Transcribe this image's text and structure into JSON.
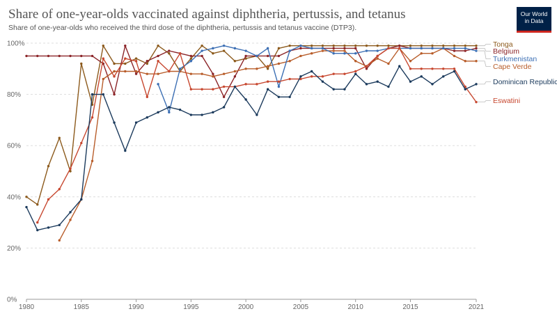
{
  "header": {
    "title": "Share of one-year-olds vaccinated against diphtheria, pertussis, and tetanus",
    "subtitle": "Share of one-year-olds who received the third dose of the diphtheria, pertussis and tetanus vaccine (DTP3).",
    "logo_line1": "Our World",
    "logo_line2": "in Data"
  },
  "colors": {
    "Tonga": "#8c5a1c",
    "Belgium": "#8b2428",
    "Turkmenistan": "#3c6fb4",
    "Cape Verde": "#b85d2a",
    "Dominican Republic": "#1b3a5c",
    "Eswatini": "#c7472f",
    "logo_bg": "#002147",
    "logo_accent": "#ce261e"
  },
  "chart_data": {
    "type": "line",
    "title": "Share of one-year-olds vaccinated against diphtheria, pertussis, and tetanus",
    "subtitle": "Share of one-year-olds who received the third dose of the diphtheria, pertussis and tetanus vaccine (DTP3).",
    "xlim": [
      1980,
      2021
    ],
    "ylim": [
      0,
      100
    ],
    "x_ticks": [
      "1980",
      "1985",
      "1990",
      "1995",
      "2000",
      "2005",
      "2010",
      "2015",
      "2021"
    ],
    "y_ticks": [
      "0%",
      "20%",
      "40%",
      "60%",
      "80%",
      "100%"
    ],
    "grid": "horizontal dashed",
    "legend_placement": "right, inline labels",
    "series": [
      {
        "name": "Tonga",
        "x": [
          1980,
          1981,
          1982,
          1983,
          1984,
          1985,
          1986,
          1987,
          1988,
          1989,
          1990,
          1991,
          1992,
          1993,
          1994,
          1995,
          1996,
          1997,
          1998,
          1999,
          2000,
          2001,
          2002,
          2003,
          2004,
          2005,
          2006,
          2007,
          2008,
          2009,
          2010,
          2011,
          2012,
          2013,
          2014,
          2015,
          2016,
          2017,
          2018,
          2019,
          2020,
          2021
        ],
        "values": [
          40,
          37,
          52,
          63,
          50,
          92,
          76,
          99,
          92,
          92,
          94,
          92,
          99,
          96,
          89,
          94,
          99,
          96,
          97,
          93,
          94,
          95,
          90,
          98,
          99,
          99,
          99,
          99,
          99,
          99,
          99,
          99,
          99,
          99,
          99,
          99,
          99,
          99,
          99,
          99,
          99,
          99
        ]
      },
      {
        "name": "Belgium",
        "x": [
          1980,
          1981,
          1982,
          1983,
          1984,
          1985,
          1986,
          1987,
          1988,
          1989,
          1990,
          1991,
          1992,
          1993,
          1994,
          1995,
          1996,
          1997,
          1998,
          1999,
          2000,
          2001,
          2002,
          2003,
          2004,
          2005,
          2006,
          2007,
          2008,
          2009,
          2010,
          2011,
          2012,
          2013,
          2014,
          2015,
          2016,
          2017,
          2018,
          2019,
          2020,
          2021
        ],
        "values": [
          95,
          95,
          95,
          95,
          95,
          95,
          95,
          92,
          80,
          99,
          88,
          93,
          95,
          97,
          96,
          95,
          95,
          88,
          79,
          87,
          95,
          95,
          95,
          95,
          97,
          98,
          98,
          98,
          98,
          98,
          98,
          90,
          95,
          98,
          99,
          98,
          98,
          98,
          98,
          97,
          97,
          98
        ]
      },
      {
        "name": "Turkmenistan",
        "x": [
          1992,
          1993,
          1994,
          1995,
          1996,
          1997,
          1998,
          1999,
          2000,
          2001,
          2002,
          2003,
          2004,
          2005,
          2006,
          2007,
          2008,
          2009,
          2010,
          2011,
          2012,
          2013,
          2014,
          2015,
          2016,
          2017,
          2018,
          2019,
          2020,
          2021
        ],
        "values": [
          84,
          73,
          90,
          93,
          97,
          98,
          99,
          98,
          97,
          95,
          98,
          83,
          97,
          99,
          98,
          98,
          96,
          96,
          96,
          97,
          97,
          98,
          98,
          98,
          98,
          98,
          98,
          98,
          98,
          97
        ]
      },
      {
        "name": "Cape Verde",
        "x": [
          1983,
          1984,
          1985,
          1986,
          1987,
          1988,
          1989,
          1990,
          1991,
          1992,
          1993,
          1994,
          1995,
          1996,
          1997,
          1998,
          1999,
          2000,
          2001,
          2002,
          2003,
          2004,
          2005,
          2006,
          2007,
          2008,
          2009,
          2010,
          2011,
          2012,
          2013,
          2014,
          2015,
          2016,
          2017,
          2018,
          2019,
          2020,
          2021
        ],
        "values": [
          23,
          31,
          39,
          54,
          86,
          89,
          89,
          89,
          88,
          88,
          89,
          89,
          88,
          88,
          87,
          88,
          89,
          90,
          90,
          91,
          92,
          93,
          95,
          96,
          97,
          97,
          97,
          93,
          91,
          94,
          92,
          98,
          93,
          96,
          96,
          98,
          95,
          93,
          93
        ]
      },
      {
        "name": "Dominican Republic",
        "x": [
          1980,
          1981,
          1982,
          1983,
          1984,
          1985,
          1986,
          1987,
          1988,
          1989,
          1990,
          1991,
          1992,
          1993,
          1994,
          1995,
          1996,
          1997,
          1998,
          1999,
          2000,
          2001,
          2002,
          2003,
          2004,
          2005,
          2006,
          2007,
          2008,
          2009,
          2010,
          2011,
          2012,
          2013,
          2014,
          2015,
          2016,
          2017,
          2018,
          2019,
          2020,
          2021
        ],
        "values": [
          36,
          27,
          28,
          29,
          34,
          39,
          80,
          80,
          69,
          58,
          69,
          71,
          73,
          75,
          74,
          72,
          72,
          73,
          75,
          83,
          78,
          72,
          82,
          79,
          79,
          87,
          89,
          85,
          82,
          82,
          88,
          84,
          85,
          83,
          91,
          85,
          87,
          84,
          87,
          89,
          82,
          84
        ]
      },
      {
        "name": "Eswatini",
        "x": [
          1981,
          1982,
          1983,
          1984,
          1985,
          1986,
          1987,
          1988,
          1989,
          1990,
          1991,
          1992,
          1993,
          1994,
          1995,
          1996,
          1997,
          1998,
          1999,
          2000,
          2001,
          2002,
          2003,
          2004,
          2005,
          2006,
          2007,
          2008,
          2009,
          2010,
          2011,
          2012,
          2013,
          2014,
          2015,
          2016,
          2017,
          2018,
          2019,
          2020,
          2021
        ],
        "values": [
          30,
          39,
          43,
          51,
          61,
          71,
          94,
          87,
          94,
          93,
          79,
          93,
          89,
          96,
          82,
          82,
          82,
          83,
          83,
          84,
          84,
          85,
          85,
          86,
          86,
          87,
          87,
          88,
          88,
          89,
          91,
          95,
          98,
          98,
          90,
          90,
          90,
          90,
          90,
          83,
          77
        ]
      }
    ],
    "legend": [
      {
        "name": "Tonga",
        "label_color": "#8c5a1c"
      },
      {
        "name": "Belgium",
        "label_color": "#8b2428"
      },
      {
        "name": "Turkmenistan",
        "label_color": "#3c6fb4"
      },
      {
        "name": "Cape Verde",
        "label_color": "#b85d2a"
      },
      {
        "name": "Dominican Republic",
        "label_color": "#1b3a5c"
      },
      {
        "name": "Eswatini",
        "label_color": "#c7472f"
      }
    ]
  }
}
